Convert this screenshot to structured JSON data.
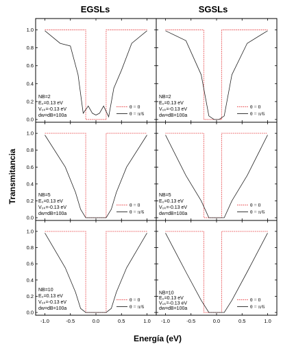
{
  "figure": {
    "col_titles": [
      "EGSLs",
      "SGSLs"
    ],
    "ylabel": "Transmitancia",
    "xlabel": "Energía (eV)",
    "x_ticks": [
      "-1.0",
      "-0.5",
      "0.0",
      "0.5",
      "1.0"
    ],
    "y_ticks": [
      "0.0",
      "0.2",
      "0.4",
      "0.6",
      "0.8",
      "1.0"
    ],
    "legend": [
      "θ = 0",
      "θ = π/6"
    ],
    "colors": {
      "theta0": "#e8474a",
      "theta_pi6": "#222222"
    }
  },
  "chart_data": [
    {
      "type": "line",
      "panel": "EGSLs NB=2",
      "annotations": [
        "NB=2",
        "E₀=0.13 eV",
        "V₀ₖ=-0.13 eV",
        "dw=dB=100a"
      ],
      "xlim": [
        -1.1,
        1.1
      ],
      "ylim": [
        0,
        1.05
      ],
      "series": [
        {
          "name": "θ = 0",
          "x": [
            -1.0,
            -0.2,
            -0.2,
            0.2,
            0.2,
            1.0
          ],
          "y": [
            1.0,
            1.0,
            0.0,
            0.0,
            1.0,
            1.0
          ]
        },
        {
          "name": "θ = π/6",
          "x": [
            -1.0,
            -0.7,
            -0.5,
            -0.35,
            -0.25,
            -0.15,
            -0.07,
            0.0,
            0.07,
            0.15,
            0.25,
            0.35,
            0.5,
            0.7,
            1.0
          ],
          "y": [
            0.99,
            0.85,
            0.82,
            0.5,
            0.07,
            0.15,
            0.07,
            0.05,
            0.07,
            0.15,
            0.03,
            0.35,
            0.55,
            0.85,
            0.99
          ]
        }
      ]
    },
    {
      "type": "line",
      "panel": "SGSLs NB=2",
      "annotations": [
        "NB=2",
        "E₀=0.13 eV",
        "V₀ₖ=-0.13 eV",
        "dw=dB=100a"
      ],
      "xlim": [
        -1.1,
        1.1
      ],
      "ylim": [
        0,
        1.05
      ],
      "series": [
        {
          "name": "θ = 0",
          "x": [
            -1.0,
            -0.25,
            -0.25,
            0.1,
            0.1,
            1.0
          ],
          "y": [
            1.0,
            1.0,
            0.0,
            0.0,
            1.0,
            1.0
          ]
        },
        {
          "name": "θ = π/6",
          "x": [
            -1.0,
            -0.6,
            -0.3,
            -0.15,
            -0.05,
            0.05,
            0.15,
            0.3,
            0.6,
            1.0
          ],
          "y": [
            0.99,
            0.88,
            0.5,
            0.04,
            0.0,
            0.0,
            0.04,
            0.5,
            0.85,
            0.99
          ]
        }
      ]
    },
    {
      "type": "line",
      "panel": "EGSLs NB=5",
      "annotations": [
        "NB=5",
        "E₀=0.13 eV",
        "V₀ₖ=-0.13 eV",
        "dw=dB=100a"
      ],
      "xlim": [
        -1.1,
        1.1
      ],
      "ylim": [
        0,
        1.05
      ],
      "series": [
        {
          "name": "θ = 0",
          "x": [
            -1.0,
            -0.2,
            -0.2,
            0.2,
            0.2,
            1.0
          ],
          "y": [
            1.0,
            1.0,
            0.0,
            0.0,
            1.0,
            1.0
          ]
        },
        {
          "name": "θ = π/6",
          "x": [
            -1.0,
            -0.6,
            -0.4,
            -0.3,
            -0.2,
            0.0,
            0.2,
            0.3,
            0.4,
            0.6,
            1.0
          ],
          "y": [
            0.98,
            0.6,
            0.3,
            0.1,
            0.0,
            0.0,
            0.0,
            0.1,
            0.3,
            0.6,
            0.98
          ]
        }
      ]
    },
    {
      "type": "line",
      "panel": "SGSLs NB=5",
      "annotations": [
        "NB=5",
        "E₀=0.13 eV",
        "V₀ₖ=-0.13 eV",
        "dw=dB=100a"
      ],
      "xlim": [
        -1.1,
        1.1
      ],
      "ylim": [
        0,
        1.05
      ],
      "series": [
        {
          "name": "θ = 0",
          "x": [
            -1.0,
            -0.25,
            -0.25,
            0.1,
            0.1,
            1.0
          ],
          "y": [
            1.0,
            1.0,
            0.0,
            0.0,
            1.0,
            1.0
          ]
        },
        {
          "name": "θ = π/6",
          "x": [
            -1.0,
            -0.6,
            -0.3,
            -0.15,
            0.0,
            0.15,
            0.3,
            0.6,
            1.0
          ],
          "y": [
            0.98,
            0.5,
            0.2,
            0.0,
            0.0,
            0.0,
            0.2,
            0.5,
            0.98
          ]
        }
      ]
    },
    {
      "type": "line",
      "panel": "EGSLs NB=10",
      "annotations": [
        "NB=10",
        "E₀=0.13 eV",
        "V₀ₖ=-0.13 eV",
        "dw=dB=100a"
      ],
      "xlim": [
        -1.1,
        1.1
      ],
      "ylim": [
        0,
        1.05
      ],
      "series": [
        {
          "name": "θ = 0",
          "x": [
            -1.0,
            -0.2,
            -0.2,
            0.2,
            0.2,
            1.0
          ],
          "y": [
            1.0,
            1.0,
            0.0,
            0.0,
            1.0,
            1.0
          ]
        },
        {
          "name": "θ = π/6",
          "x": [
            -1.0,
            -0.6,
            -0.4,
            -0.3,
            -0.2,
            0.0,
            0.2,
            0.3,
            0.4,
            0.6,
            1.0
          ],
          "y": [
            0.98,
            0.55,
            0.25,
            0.05,
            0.0,
            0.0,
            0.0,
            0.05,
            0.25,
            0.55,
            0.98
          ]
        }
      ]
    },
    {
      "type": "line",
      "panel": "SGSLs NB=10",
      "annotations": [
        "NB=10",
        "E₀=0.13 eV",
        "V₀ₖ=-0.13 eV",
        "dw=dB=100a"
      ],
      "xlim": [
        -1.1,
        1.1
      ],
      "ylim": [
        0,
        1.05
      ],
      "series": [
        {
          "name": "θ = 0",
          "x": [
            -1.0,
            -0.25,
            -0.25,
            0.1,
            0.1,
            1.0
          ],
          "y": [
            1.0,
            1.0,
            0.0,
            0.0,
            1.0,
            1.0
          ]
        },
        {
          "name": "θ = π/6",
          "x": [
            -1.0,
            -0.6,
            -0.3,
            -0.15,
            0.0,
            0.15,
            0.3,
            0.6,
            1.0
          ],
          "y": [
            0.98,
            0.5,
            0.15,
            0.0,
            0.0,
            0.0,
            0.15,
            0.5,
            0.98
          ]
        }
      ]
    }
  ]
}
